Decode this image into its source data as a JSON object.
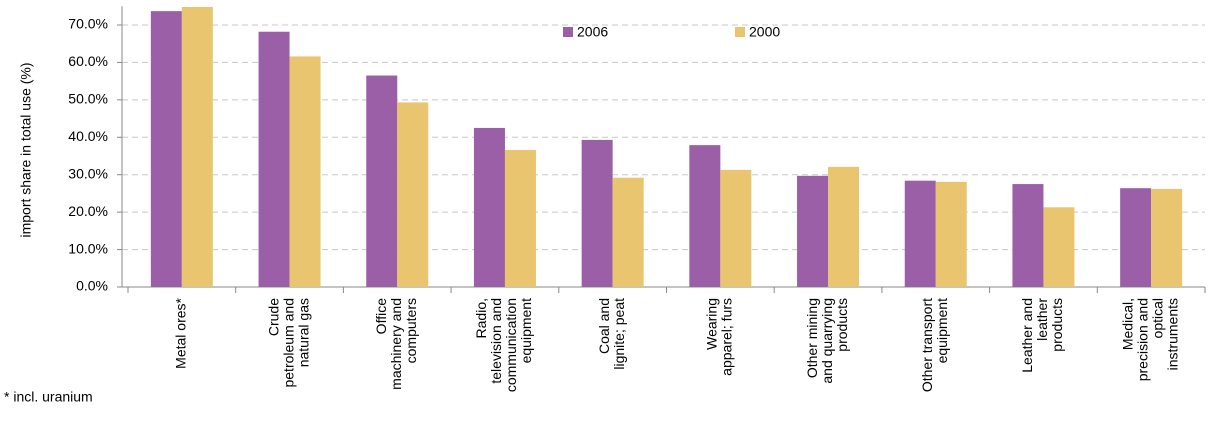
{
  "chart_data": {
    "type": "bar",
    "y_label": "import share in total use (%)",
    "annotation": "* incl. uranium",
    "categories": [
      [
        "Metal ores*"
      ],
      [
        "Crude",
        "petroleum and",
        "natural gas"
      ],
      [
        "Office",
        "machinery and",
        "computers"
      ],
      [
        "Radio,",
        "television and",
        "communication",
        "equipment"
      ],
      [
        "Coal and",
        "lignite; peat"
      ],
      [
        "Wearing",
        "apparel; furs"
      ],
      [
        "Other mining",
        "and quarrying",
        "products"
      ],
      [
        "Other transport",
        "equipment"
      ],
      [
        "Leather and",
        "leather",
        "products"
      ],
      [
        "Medical,",
        "precision and",
        "optical",
        "instruments"
      ]
    ],
    "series": [
      {
        "name": "2006",
        "color": "#9b5fa8",
        "values": [
          73.7,
          68.2,
          56.5,
          42.5,
          39.3,
          37.9,
          29.7,
          28.4,
          27.5,
          26.4
        ]
      },
      {
        "name": "2000",
        "color": "#e8c56e",
        "values": [
          74.8,
          61.6,
          49.3,
          36.6,
          29.2,
          31.3,
          32.1,
          28.1,
          21.3,
          26.2
        ]
      }
    ],
    "ylim": [
      0,
      75
    ],
    "yticks": [
      {
        "value": 0,
        "label": "0.0%"
      },
      {
        "value": 10,
        "label": "10.0%"
      },
      {
        "value": 20,
        "label": "20.0%"
      },
      {
        "value": 30,
        "label": "30.0%"
      },
      {
        "value": 40,
        "label": "40.0%"
      },
      {
        "value": 50,
        "label": "50.0%"
      },
      {
        "value": 60,
        "label": "60.0%"
      },
      {
        "value": 70,
        "label": "70.0%"
      }
    ],
    "grid": true
  }
}
